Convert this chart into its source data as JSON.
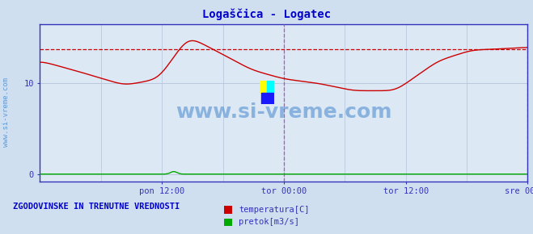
{
  "title": "Logaščica - Logatec",
  "title_color": "#0000cc",
  "bg_color": "#d0dff0",
  "plot_bg_color": "#dde8f5",
  "grid_color": "#b8c8dc",
  "axis_color": "#3333bb",
  "tick_label_color": "#3333bb",
  "yticks": [
    0,
    10
  ],
  "ylim": [
    -0.8,
    16.5
  ],
  "xlim": [
    0,
    576
  ],
  "x_tick_positions": [
    144,
    288,
    432,
    576
  ],
  "x_tick_labels": [
    "pon 12:00",
    "tor 00:00",
    "tor 12:00",
    "sre 00:00"
  ],
  "dashed_line_y": 13.8,
  "dashed_line_color": "#cc0000",
  "vline_color": "#cc44cc",
  "watermark_text": "www.si-vreme.com",
  "watermark_color": "#4488cc",
  "rotated_text": "www.si-vreme.com",
  "legend_title": "ZGODOVINSKE IN TRENUTNE VREDNOSTI",
  "legend_title_color": "#0000cc",
  "legend_items": [
    "temperatura[C]",
    "pretok[m3/s]"
  ],
  "legend_colors": [
    "#cc0000",
    "#00aa00"
  ],
  "temp_color": "#cc0000",
  "flow_color": "#00aa00"
}
